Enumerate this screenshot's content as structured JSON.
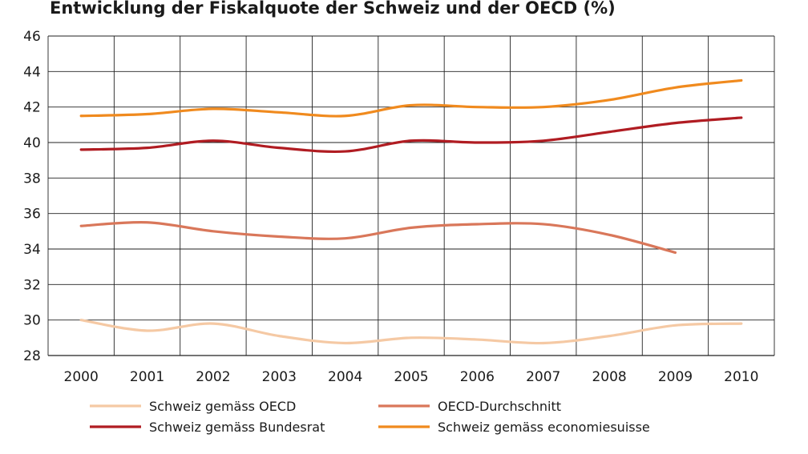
{
  "chart_data": {
    "type": "line",
    "title": "Entwicklung der Fiskalquote der Schweiz und der OECD (%)",
    "xlabel": "",
    "ylabel": "",
    "x": [
      "2000",
      "2001",
      "2002",
      "2003",
      "2004",
      "2005",
      "2006",
      "2007",
      "2008",
      "2009",
      "2010"
    ],
    "ylim": [
      28,
      46
    ],
    "y_ticks": [
      "28",
      "30",
      "32",
      "34",
      "36",
      "38",
      "40",
      "42",
      "44",
      "46"
    ],
    "grid": true,
    "legend_position": "bottom",
    "series": [
      {
        "name": "Schweiz gemäss OECD",
        "color": "#f5c9a4",
        "values": [
          30.0,
          29.4,
          29.8,
          29.1,
          28.7,
          29.0,
          28.9,
          28.7,
          29.1,
          29.7,
          29.8
        ]
      },
      {
        "name": "OECD-Durchschnitt",
        "color": "#d9775a",
        "values": [
          35.3,
          35.5,
          35.0,
          34.7,
          34.6,
          35.2,
          35.4,
          35.4,
          34.8,
          33.8,
          null
        ]
      },
      {
        "name": "Schweiz gemäss Bundesrat",
        "color": "#b01c22",
        "values": [
          39.6,
          39.7,
          40.1,
          39.7,
          39.5,
          40.1,
          40.0,
          40.1,
          40.6,
          41.1,
          41.4
        ]
      },
      {
        "name": "Schweiz gemäss economiesuisse",
        "color": "#f08a1e",
        "values": [
          41.5,
          41.6,
          41.9,
          41.7,
          41.5,
          42.1,
          42.0,
          42.0,
          42.4,
          43.1,
          43.5
        ]
      }
    ]
  }
}
